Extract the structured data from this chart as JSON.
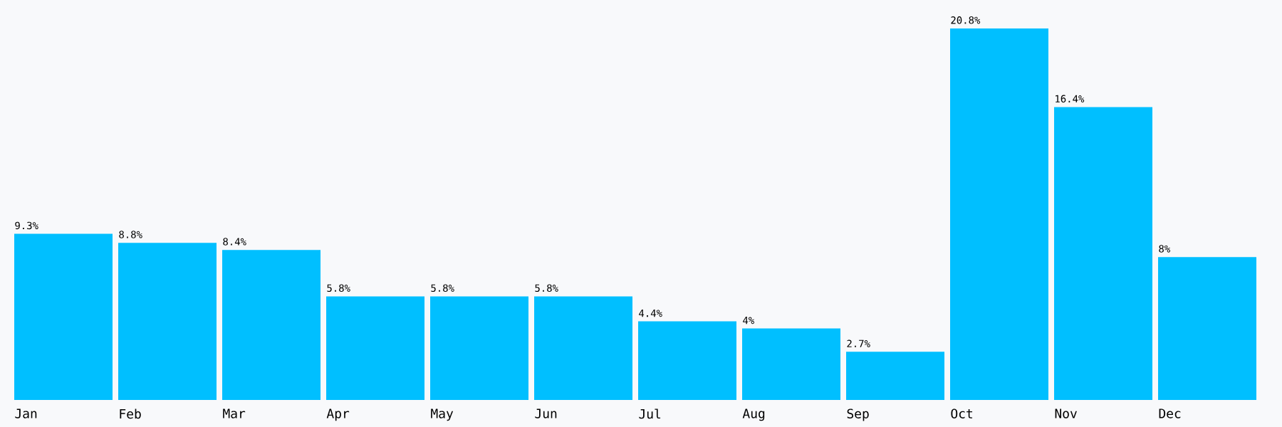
{
  "chart_data": {
    "type": "bar",
    "categories": [
      "Jan",
      "Feb",
      "Mar",
      "Apr",
      "May",
      "Jun",
      "Jul",
      "Aug",
      "Sep",
      "Oct",
      "Nov",
      "Dec"
    ],
    "values": [
      9.3,
      8.8,
      8.4,
      5.8,
      5.8,
      5.8,
      4.4,
      4,
      2.7,
      20.8,
      16.4,
      8
    ],
    "value_labels": [
      "9.3%",
      "8.8%",
      "8.4%",
      "5.8%",
      "5.8%",
      "5.8%",
      "4.4%",
      "4%",
      "2.7%",
      "20.8%",
      "16.4%",
      "8%"
    ],
    "color": "#00bfff"
  }
}
